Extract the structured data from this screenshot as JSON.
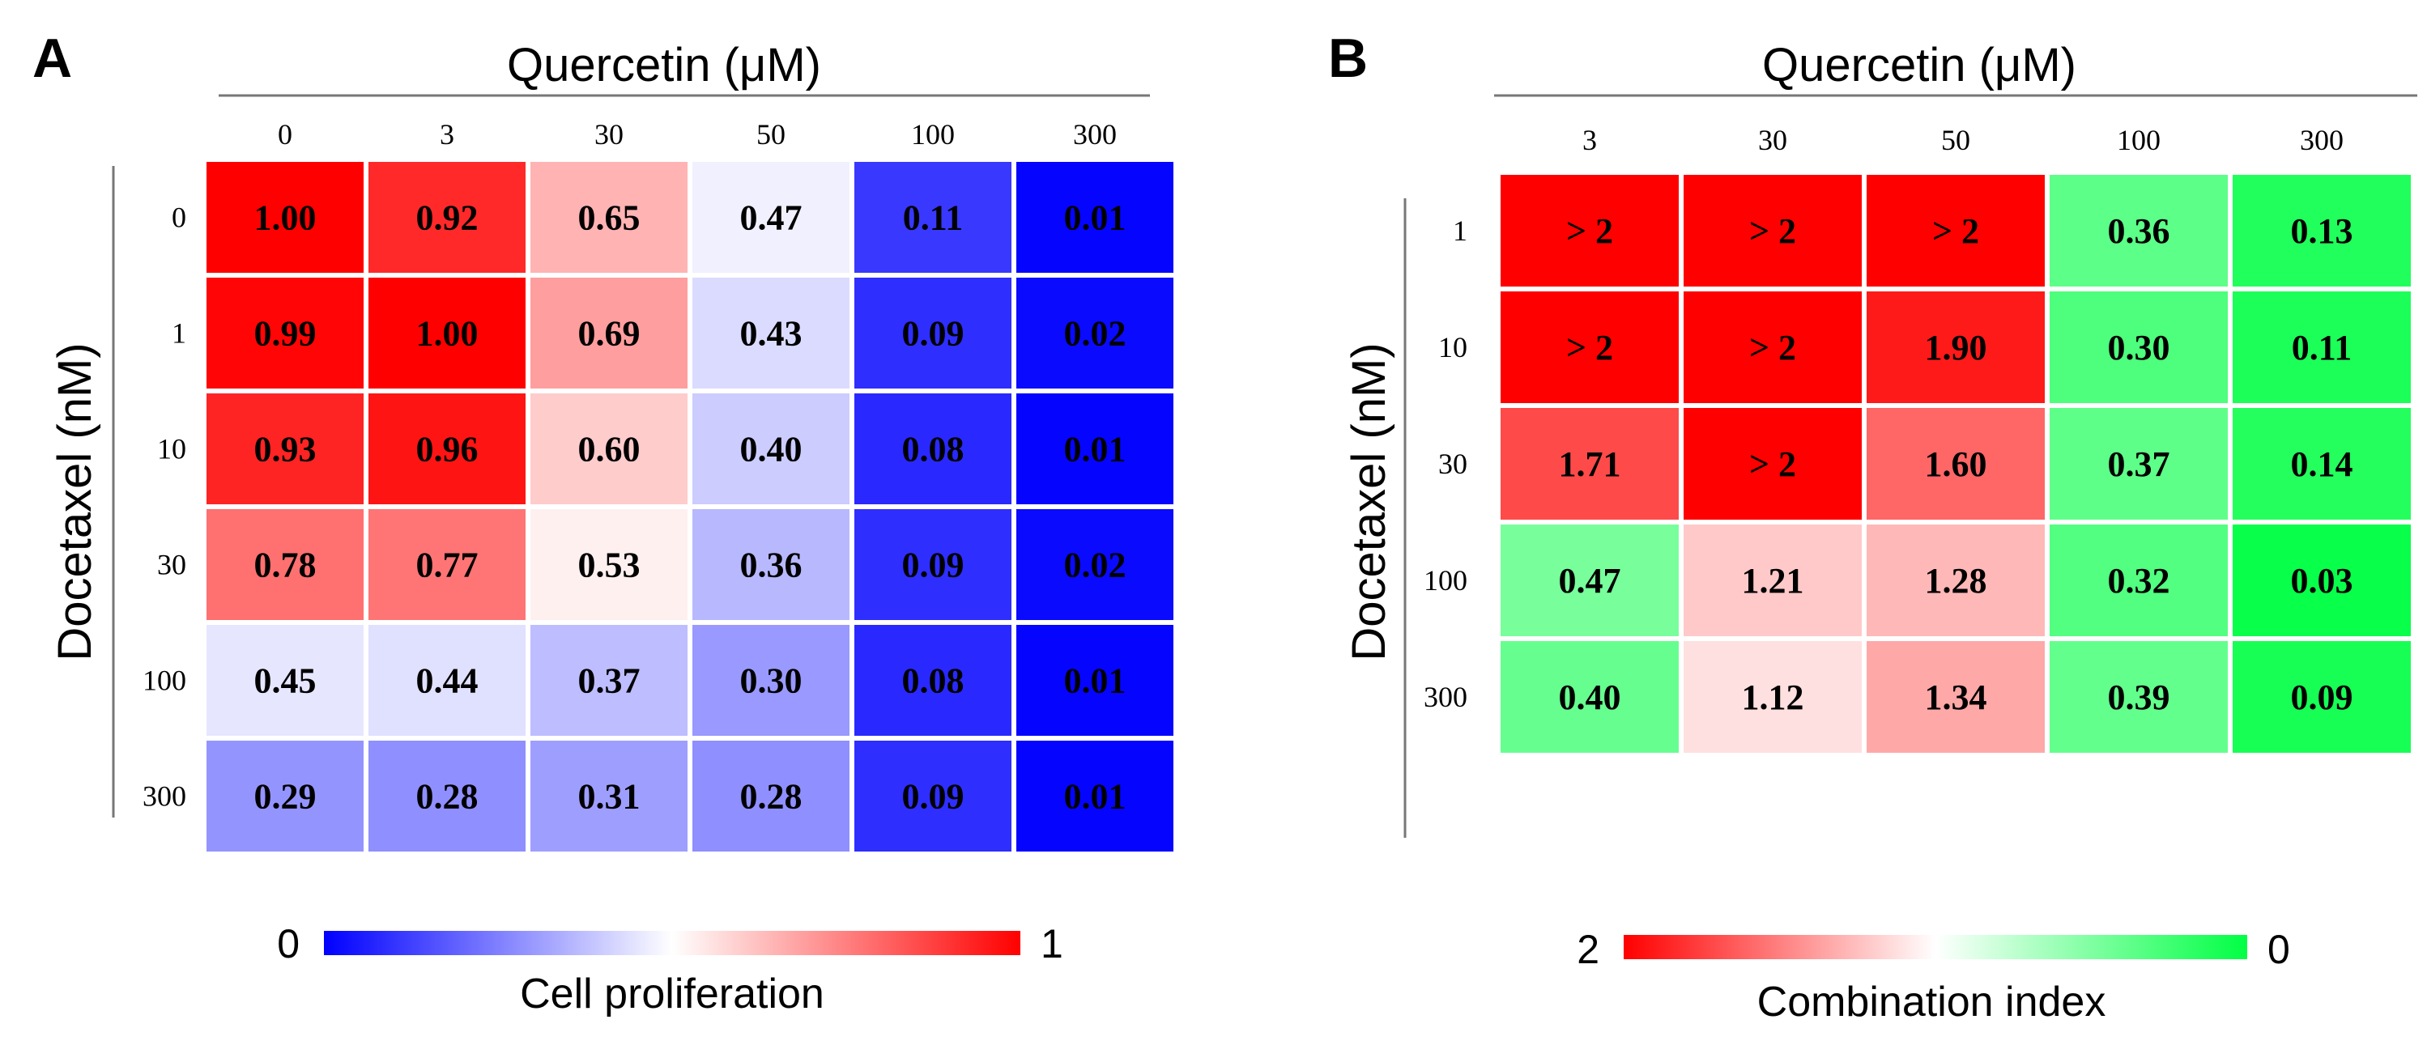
{
  "chart_data": [
    {
      "type": "heatmap",
      "panel": "A",
      "x_title": "Quercetin (μM)",
      "y_title": "Docetaxel (nM)",
      "x_labels": [
        "0",
        "3",
        "30",
        "50",
        "100",
        "300"
      ],
      "y_labels": [
        "0",
        "1",
        "10",
        "30",
        "100",
        "300"
      ],
      "values": [
        [
          1.0,
          0.92,
          0.65,
          0.47,
          0.11,
          0.01
        ],
        [
          0.99,
          1.0,
          0.69,
          0.43,
          0.09,
          0.02
        ],
        [
          0.93,
          0.96,
          0.6,
          0.4,
          0.08,
          0.01
        ],
        [
          0.78,
          0.77,
          0.53,
          0.36,
          0.09,
          0.02
        ],
        [
          0.45,
          0.44,
          0.37,
          0.3,
          0.08,
          0.01
        ],
        [
          0.29,
          0.28,
          0.31,
          0.28,
          0.09,
          0.01
        ]
      ],
      "cell_text": [
        [
          "1.00",
          "0.92",
          "0.65",
          "0.47",
          "0.11",
          "0.01"
        ],
        [
          "0.99",
          "1.00",
          "0.69",
          "0.43",
          "0.09",
          "0.02"
        ],
        [
          "0.93",
          "0.96",
          "0.60",
          "0.40",
          "0.08",
          "0.01"
        ],
        [
          "0.78",
          "0.77",
          "0.53",
          "0.36",
          "0.09",
          "0.02"
        ],
        [
          "0.45",
          "0.44",
          "0.37",
          "0.30",
          "0.08",
          "0.01"
        ],
        [
          "0.29",
          "0.28",
          "0.31",
          "0.28",
          "0.09",
          "0.01"
        ]
      ],
      "colorbar": {
        "title": "Cell proliferation",
        "left_label": "0",
        "right_label": "1",
        "range": [
          0,
          1
        ],
        "colors": [
          "#0000ff",
          "#ffffff",
          "#ff0000"
        ]
      }
    },
    {
      "type": "heatmap",
      "panel": "B",
      "x_title": "Quercetin (μM)",
      "y_title": "Docetaxel (nM)",
      "x_labels": [
        "3",
        "30",
        "50",
        "100",
        "300"
      ],
      "y_labels": [
        "1",
        "10",
        "30",
        "100",
        "300"
      ],
      "values": [
        [
          2.0,
          2.0,
          2.0,
          0.36,
          0.13
        ],
        [
          2.0,
          2.0,
          1.9,
          0.3,
          0.11
        ],
        [
          1.71,
          2.0,
          1.6,
          0.37,
          0.14
        ],
        [
          0.47,
          1.21,
          1.28,
          0.32,
          0.03
        ],
        [
          0.4,
          1.12,
          1.34,
          0.39,
          0.09
        ]
      ],
      "cell_text": [
        [
          "> 2",
          "> 2",
          "> 2",
          "0.36",
          "0.13"
        ],
        [
          "> 2",
          "> 2",
          "1.90",
          "0.30",
          "0.11"
        ],
        [
          "1.71",
          "> 2",
          "1.60",
          "0.37",
          "0.14"
        ],
        [
          "0.47",
          "1.21",
          "1.28",
          "0.32",
          "0.03"
        ],
        [
          "0.40",
          "1.12",
          "1.34",
          "0.39",
          "0.09"
        ]
      ],
      "colorbar": {
        "title": "Combination index",
        "left_label": "2",
        "right_label": "0",
        "range": [
          2,
          0
        ],
        "colors": [
          "#ff0000",
          "#ffffff",
          "#00ff44"
        ]
      }
    }
  ]
}
